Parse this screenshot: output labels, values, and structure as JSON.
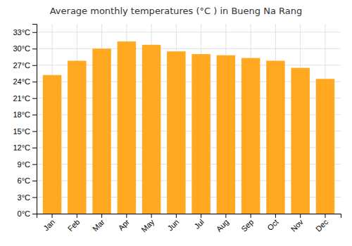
{
  "chart_data": {
    "type": "bar",
    "title": "Average monthly temperatures (°C ) in Bueng Na Rang",
    "categories": [
      "Jan",
      "Feb",
      "Mar",
      "Apr",
      "May",
      "Jun",
      "Jul",
      "Aug",
      "Sep",
      "Oct",
      "Nov",
      "Dec"
    ],
    "values": [
      25.2,
      27.8,
      30.0,
      31.3,
      30.7,
      29.5,
      29.0,
      28.8,
      28.3,
      27.8,
      26.5,
      24.5
    ],
    "color": "#FFA820",
    "ylim": [
      0,
      34.5
    ],
    "yticks": [
      {
        "value": 0,
        "label": "0°C"
      },
      {
        "value": 3,
        "label": "3°C"
      },
      {
        "value": 6,
        "label": "6°C"
      },
      {
        "value": 9,
        "label": "9°C"
      },
      {
        "value": 12,
        "label": "12°C"
      },
      {
        "value": 15,
        "label": "15°C"
      },
      {
        "value": 18,
        "label": "18°C"
      },
      {
        "value": 21,
        "label": "21°C"
      },
      {
        "value": 24,
        "label": "24°C"
      },
      {
        "value": 27,
        "label": "27°C"
      },
      {
        "value": 30,
        "label": "30°C"
      },
      {
        "value": 33,
        "label": "33°C"
      }
    ],
    "grid": true
  }
}
